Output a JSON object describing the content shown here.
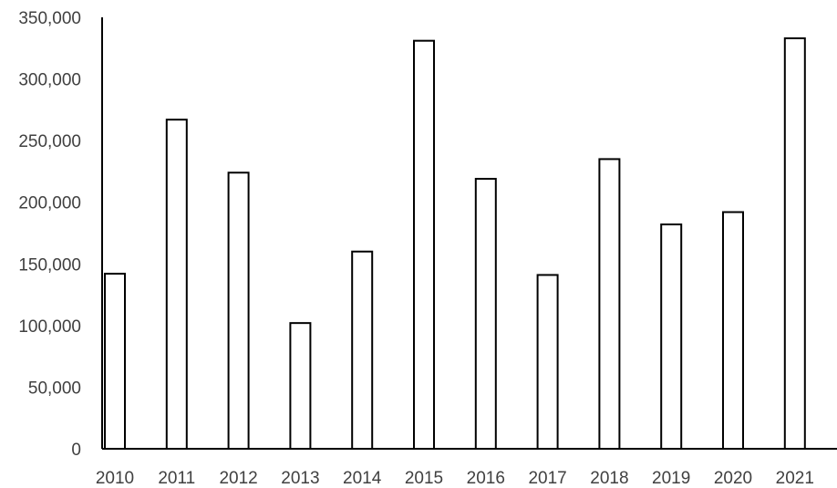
{
  "chart_data": {
    "type": "bar",
    "title": "",
    "xlabel": "",
    "ylabel": "",
    "categories": [
      "2010",
      "2011",
      "2012",
      "2013",
      "2014",
      "2015",
      "2016",
      "2017",
      "2018",
      "2019",
      "2020",
      "2021"
    ],
    "values": [
      142000,
      267000,
      224000,
      102000,
      160000,
      331000,
      219000,
      141000,
      235000,
      182000,
      192000,
      333000
    ],
    "ylim": [
      0,
      350000
    ],
    "yticks": [
      0,
      50000,
      100000,
      150000,
      200000,
      250000,
      300000,
      350000
    ],
    "ytick_labels": [
      "0",
      "50,000",
      "100,000",
      "150,000",
      "200,000",
      "250,000",
      "300,000",
      "350,000"
    ],
    "grid": false,
    "legend": "none",
    "colors": {
      "bar_fill": "#ffffff",
      "bar_stroke": "#000000",
      "axis": "#000000",
      "tick_text": "#404040"
    }
  }
}
